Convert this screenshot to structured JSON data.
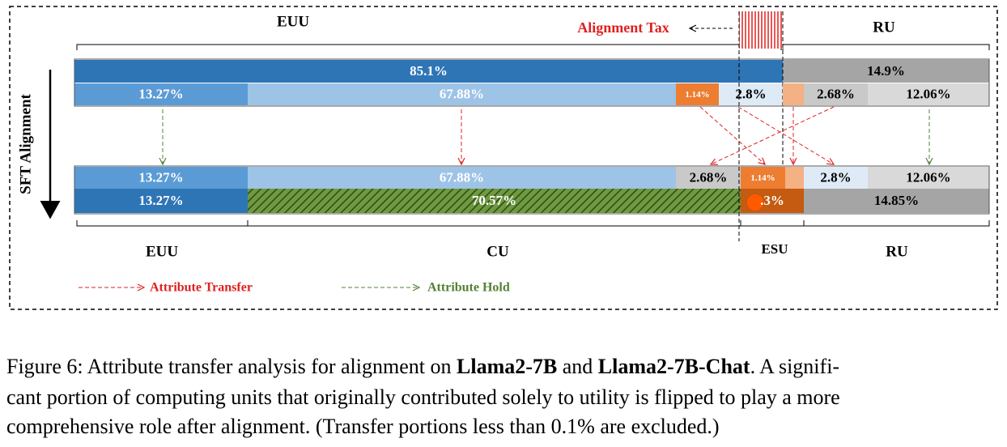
{
  "labels": {
    "top_left": "EUU",
    "top_right": "RU",
    "tax": "Alignment Tax",
    "axis": "SFT Alignment",
    "bottom": [
      "EUU",
      "CU",
      "ESU",
      "RU"
    ]
  },
  "before": {
    "row1": [
      "85.1%",
      "14.9%"
    ],
    "row2": [
      "13.27%",
      "67.88%",
      "1.14%",
      "2.8%",
      "2.68%",
      "12.06%"
    ]
  },
  "after": {
    "row1": [
      "13.27%",
      "67.88%",
      "2.68%",
      "1.14%",
      "2.8%",
      "12.06%"
    ],
    "row2": [
      "13.27%",
      "70.57%",
      ".3%",
      "14.85%"
    ]
  },
  "legend": [
    "Attribute Transfer",
    "Attribute Hold"
  ],
  "caption": [
    [
      {
        "text": "Figure 6: Attribute transfer analysis for alignment on ",
        "bold": false
      },
      {
        "text": "Llama2-7B",
        "bold": true
      },
      {
        "text": " and ",
        "bold": false
      },
      {
        "text": "Llama2-7B-Chat",
        "bold": true
      },
      {
        "text": ". A signifi-",
        "bold": false
      }
    ],
    [
      {
        "text": "cant portion of computing units that originally contributed solely to utility is flipped to play a more",
        "bold": false
      }
    ],
    [
      {
        "text": "comprehensive role after alignment. (Transfer portions less than 0.1% are excluded.)",
        "bold": false
      }
    ]
  ]
}
